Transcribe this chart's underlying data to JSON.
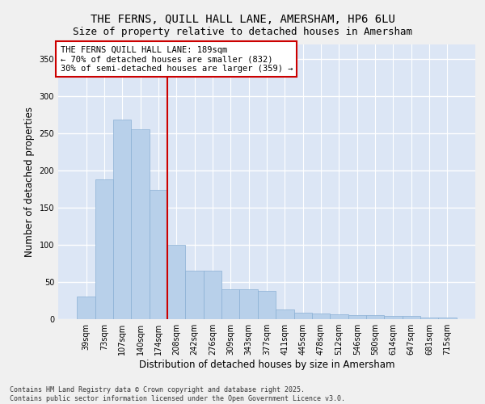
{
  "title_line1": "THE FERNS, QUILL HALL LANE, AMERSHAM, HP6 6LU",
  "title_line2": "Size of property relative to detached houses in Amersham",
  "xlabel": "Distribution of detached houses by size in Amersham",
  "ylabel": "Number of detached properties",
  "categories": [
    "39sqm",
    "73sqm",
    "107sqm",
    "140sqm",
    "174sqm",
    "208sqm",
    "242sqm",
    "276sqm",
    "309sqm",
    "343sqm",
    "377sqm",
    "411sqm",
    "445sqm",
    "478sqm",
    "512sqm",
    "546sqm",
    "580sqm",
    "614sqm",
    "647sqm",
    "681sqm",
    "715sqm"
  ],
  "values": [
    30,
    188,
    269,
    256,
    174,
    100,
    65,
    65,
    40,
    40,
    38,
    13,
    9,
    8,
    7,
    5,
    5,
    4,
    4,
    2,
    2
  ],
  "bar_color": "#b8d0ea",
  "bar_edge_color": "#8ab0d4",
  "background_color": "#dce6f5",
  "grid_color": "#ffffff",
  "annotation_box_text": "THE FERNS QUILL HALL LANE: 189sqm\n← 70% of detached houses are smaller (832)\n30% of semi-detached houses are larger (359) →",
  "annotation_box_color": "#cc0000",
  "vline_x_index": 4.5,
  "vline_color": "#cc0000",
  "ylim": [
    0,
    370
  ],
  "yticks": [
    0,
    50,
    100,
    150,
    200,
    250,
    300,
    350
  ],
  "footer_text": "Contains HM Land Registry data © Crown copyright and database right 2025.\nContains public sector information licensed under the Open Government Licence v3.0.",
  "title_fontsize": 10,
  "subtitle_fontsize": 9,
  "tick_fontsize": 7,
  "label_fontsize": 8.5,
  "annotation_fontsize": 7.5,
  "fig_bg": "#f0f0f0"
}
